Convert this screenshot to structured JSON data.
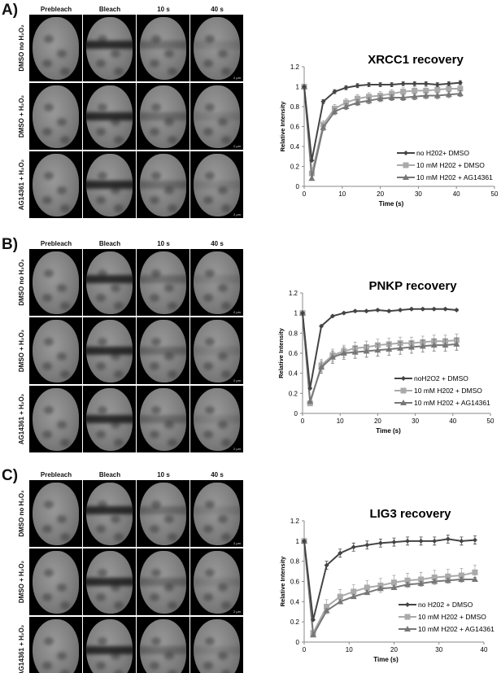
{
  "columns": [
    "Prebleach",
    "Bleach",
    "10 s",
    "40 s"
  ],
  "scale_bar": "2 µm",
  "panels": [
    {
      "label": "A)",
      "rows": [
        "DMSO no H₂O₂",
        "DMSO + H₂O₂",
        "AG14361 + H₂O₂"
      ]
    },
    {
      "label": "B)",
      "rows": [
        "DMSO no H₂O₂",
        "DMSO + H₂O₂",
        "AG14361 + H₂O₂"
      ]
    },
    {
      "label": "C)",
      "rows": [
        "DMSO no H₂O₂",
        "DMSO + H₂O₂",
        "AG14361 + H₂O₂"
      ]
    }
  ],
  "chart_data": [
    {
      "type": "line",
      "title": "XRCC1 recovery",
      "xlabel": "Time (s)",
      "ylabel": "Relative Intensity",
      "xlim": [
        0,
        50
      ],
      "ylim": [
        0,
        1.2
      ],
      "xticks": [
        0,
        10,
        20,
        30,
        40,
        50
      ],
      "yticks": [
        0,
        0.2,
        0.4,
        0.6,
        0.8,
        1,
        1.2
      ],
      "legend": "bottom-right",
      "x": [
        0,
        2,
        5,
        8,
        11,
        14,
        17,
        20,
        23,
        26,
        29,
        32,
        35,
        38,
        41
      ],
      "series": [
        {
          "name": "no H202+ DMSO",
          "marker": "diamond",
          "color": "#444444",
          "error": 0.02,
          "values": [
            1,
            0.26,
            0.85,
            0.95,
            0.99,
            1.01,
            1.02,
            1.02,
            1.02,
            1.03,
            1.03,
            1.03,
            1.02,
            1.03,
            1.04
          ]
        },
        {
          "name": "10 mM H202 + DMSO",
          "marker": "square",
          "color": "#aaaaaa",
          "error": 0.04,
          "values": [
            1,
            0.13,
            0.62,
            0.78,
            0.84,
            0.88,
            0.9,
            0.91,
            0.93,
            0.95,
            0.96,
            0.96,
            0.97,
            0.98,
            0.98
          ]
        },
        {
          "name": "10 mM H202 + AG14361",
          "marker": "triangle",
          "color": "#777777",
          "error": 0.03,
          "values": [
            1,
            0.08,
            0.59,
            0.75,
            0.8,
            0.84,
            0.86,
            0.88,
            0.89,
            0.89,
            0.9,
            0.91,
            0.91,
            0.92,
            0.93
          ]
        }
      ]
    },
    {
      "type": "line",
      "title": "PNKP recovery",
      "xlabel": "Time (s)",
      "ylabel": "Relative Intensity",
      "xlim": [
        0,
        50
      ],
      "ylim": [
        0,
        1.2
      ],
      "xticks": [
        0,
        10,
        20,
        30,
        40,
        50
      ],
      "yticks": [
        0,
        0.2,
        0.4,
        0.6,
        0.8,
        1,
        1.2
      ],
      "legend": "bottom-right",
      "x": [
        0,
        2,
        5,
        8,
        11,
        14,
        17,
        20,
        23,
        26,
        29,
        32,
        35,
        38,
        41
      ],
      "series": [
        {
          "name": "noH2O2 + DMSO",
          "marker": "diamond",
          "color": "#444444",
          "error": 0.01,
          "values": [
            1,
            0.25,
            0.87,
            0.97,
            1.0,
            1.02,
            1.02,
            1.03,
            1.02,
            1.03,
            1.04,
            1.04,
            1.04,
            1.04,
            1.03
          ]
        },
        {
          "name": "10 mM H202 + DMSO",
          "marker": "square",
          "color": "#aaaaaa",
          "error": 0.06,
          "values": [
            1,
            0.1,
            0.48,
            0.58,
            0.62,
            0.65,
            0.66,
            0.68,
            0.69,
            0.7,
            0.7,
            0.71,
            0.72,
            0.72,
            0.73
          ]
        },
        {
          "name": "10 mM H202 + AG14361",
          "marker": "triangle",
          "color": "#777777",
          "error": 0.06,
          "values": [
            1,
            0.12,
            0.46,
            0.56,
            0.6,
            0.61,
            0.62,
            0.63,
            0.64,
            0.65,
            0.66,
            0.67,
            0.68,
            0.68,
            0.69
          ]
        }
      ]
    },
    {
      "type": "line",
      "title": "LIG3 recovery",
      "xlabel": "Time (s)",
      "ylabel": "Relative Intensity",
      "xlim": [
        0,
        40
      ],
      "ylim": [
        0,
        1.2
      ],
      "xticks": [
        0,
        10,
        20,
        30,
        40
      ],
      "yticks": [
        0,
        0.2,
        0.4,
        0.6,
        0.8,
        1,
        1.2
      ],
      "legend": "bottom-right",
      "x": [
        0,
        2,
        5,
        8,
        11,
        14,
        17,
        20,
        23,
        26,
        29,
        32,
        35,
        38
      ],
      "series": [
        {
          "name": "no H202 + DMSO",
          "marker": "diamond",
          "color": "#444444",
          "error": 0.04,
          "values": [
            1,
            0.22,
            0.76,
            0.88,
            0.94,
            0.96,
            0.98,
            0.99,
            1.0,
            1.0,
            1.0,
            1.02,
            1.0,
            1.01
          ]
        },
        {
          "name": "10 mM H202 + DMSO",
          "marker": "square",
          "color": "#aaaaaa",
          "error": 0.07,
          "values": [
            1,
            0.09,
            0.35,
            0.45,
            0.5,
            0.54,
            0.56,
            0.59,
            0.61,
            0.62,
            0.64,
            0.65,
            0.66,
            0.69
          ]
        },
        {
          "name": "10 mM H202 + AG14361",
          "marker": "triangle",
          "color": "#777777",
          "error": 0.02,
          "values": [
            1,
            0.07,
            0.31,
            0.4,
            0.45,
            0.49,
            0.53,
            0.54,
            0.57,
            0.58,
            0.6,
            0.61,
            0.62,
            0.62
          ]
        }
      ]
    }
  ]
}
